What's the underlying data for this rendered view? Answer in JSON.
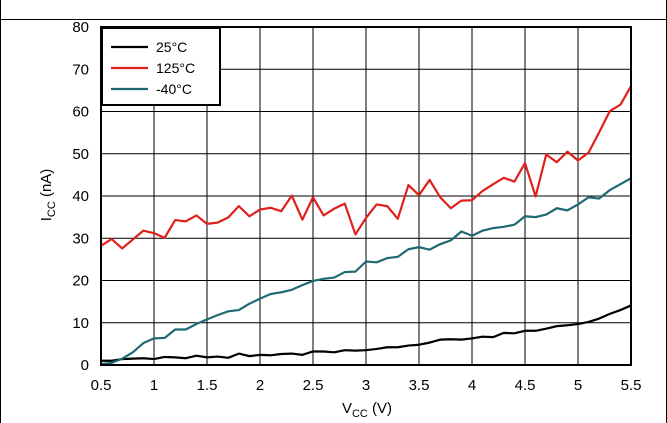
{
  "chart_data": {
    "type": "line",
    "title": "",
    "xlabel": {
      "main": "V",
      "sub": "CC",
      "unit": " (V)"
    },
    "ylabel": {
      "main": "I",
      "sub": "CC",
      "unit": " (nA)"
    },
    "xlim": [
      0.5,
      5.5
    ],
    "ylim": [
      0,
      80
    ],
    "x_ticks": [
      "0.5",
      "1",
      "1.5",
      "2",
      "2.5",
      "3",
      "3.5",
      "4",
      "4.5",
      "5",
      "5.5"
    ],
    "y_ticks": [
      "0",
      "10",
      "20",
      "30",
      "40",
      "50",
      "60",
      "70",
      "80"
    ],
    "grid": true,
    "legend_position": "top-left",
    "x": [
      0.5,
      0.6,
      0.7,
      0.8,
      0.9,
      1.0,
      1.1,
      1.2,
      1.3,
      1.4,
      1.5,
      1.6,
      1.7,
      1.8,
      1.9,
      2.0,
      2.1,
      2.2,
      2.3,
      2.4,
      2.5,
      2.6,
      2.7,
      2.8,
      2.9,
      3.0,
      3.1,
      3.2,
      3.3,
      3.4,
      3.5,
      3.6,
      3.7,
      3.8,
      3.9,
      4.0,
      4.1,
      4.2,
      4.3,
      4.4,
      4.5,
      4.6,
      4.7,
      4.8,
      4.9,
      5.0,
      5.1,
      5.2,
      5.3,
      5.4,
      5.5
    ],
    "series": [
      {
        "name": "25°C",
        "color": "#000000",
        "values": [
          1.0,
          1.0,
          1.4,
          1.5,
          1.6,
          1.4,
          1.9,
          1.8,
          1.6,
          2.2,
          1.8,
          2.0,
          1.7,
          2.7,
          2.1,
          2.4,
          2.3,
          2.6,
          2.7,
          2.4,
          3.2,
          3.2,
          3.0,
          3.5,
          3.4,
          3.5,
          3.8,
          4.2,
          4.2,
          4.6,
          4.8,
          5.3,
          6.0,
          6.1,
          6.0,
          6.3,
          6.7,
          6.6,
          7.6,
          7.5,
          8.1,
          8.1,
          8.6,
          9.2,
          9.4,
          9.7,
          10.2,
          11.0,
          12.1,
          13.0,
          14.1
        ]
      },
      {
        "name": "125°C",
        "color": "#e0201a",
        "values": [
          28.2,
          29.8,
          27.6,
          29.7,
          31.8,
          31.2,
          30.1,
          34.3,
          34.0,
          35.4,
          33.4,
          33.7,
          34.9,
          37.6,
          35.2,
          36.8,
          37.2,
          36.4,
          40.1,
          34.4,
          39.7,
          35.4,
          37.0,
          38.2,
          30.9,
          34.8,
          38.0,
          37.6,
          34.6,
          42.6,
          40.2,
          43.8,
          39.7,
          37.1,
          38.9,
          39.0,
          41.2,
          42.8,
          44.3,
          43.4,
          47.8,
          39.9,
          49.8,
          48.0,
          50.5,
          48.4,
          50.3,
          55.1,
          60.1,
          61.6,
          66.0
        ]
      },
      {
        "name": "-40°C",
        "color": "#1f6a72",
        "values": [
          0.2,
          0.5,
          1.5,
          3.0,
          5.2,
          6.3,
          6.4,
          8.4,
          8.4,
          9.7,
          10.8,
          11.8,
          12.7,
          13.0,
          14.5,
          15.7,
          16.8,
          17.2,
          17.8,
          18.9,
          19.9,
          20.4,
          20.7,
          22.0,
          22.1,
          24.5,
          24.3,
          25.3,
          25.6,
          27.4,
          27.9,
          27.3,
          28.6,
          29.5,
          31.6,
          30.6,
          31.8,
          32.4,
          32.7,
          33.2,
          35.2,
          35.0,
          35.6,
          37.1,
          36.6,
          38.0,
          39.7,
          39.4,
          41.4,
          42.8,
          44.2
        ]
      }
    ]
  }
}
